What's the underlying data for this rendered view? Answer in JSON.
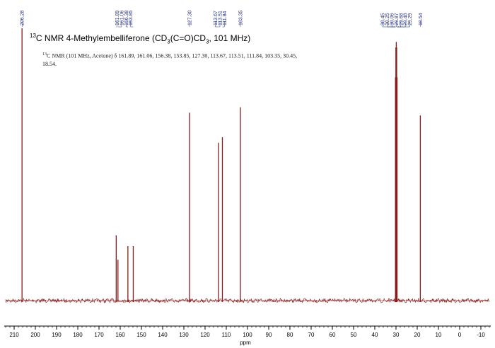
{
  "chart_data": {
    "type": "line",
    "title": {
      "prefix": "13",
      "text": "C NMR 4-Methylembelliferone (CD",
      "sub1": "3",
      "mid": "(C=O)CD",
      "sub2": "3",
      "suffix": ", 101 MHz)"
    },
    "description": {
      "prefix": "13",
      "text": "C NMR (101 MHz, Acetone) δ 161.89, 161.06, 156.38, 153.85, 127.30, 113.67, 113.51, 111.84, 103.35, 30.45, 18.54."
    },
    "xlabel": "ppm",
    "ylabel": "",
    "xlim": [
      214,
      -14
    ],
    "x_reversed": true,
    "x_ticks": [
      210,
      200,
      190,
      180,
      170,
      160,
      150,
      140,
      130,
      120,
      110,
      100,
      90,
      80,
      70,
      60,
      50,
      40,
      30,
      20,
      10,
      0,
      -10
    ],
    "peak_labels": [
      {
        "group": "a",
        "labels": [
          "206.28"
        ]
      },
      {
        "group": "b",
        "labels": [
          "161.89",
          "161.06",
          "156.38",
          "153.85"
        ]
      },
      {
        "group": "c",
        "labels": [
          "127.30"
        ]
      },
      {
        "group": "d",
        "labels": [
          "113.67",
          "113.51",
          "111.84"
        ]
      },
      {
        "group": "e",
        "labels": [
          "103.35"
        ]
      },
      {
        "group": "f",
        "labels": [
          "30.45",
          "30.25",
          "30.06",
          "29.87",
          "29.68",
          "29.48",
          "29.29"
        ]
      },
      {
        "group": "g",
        "labels": [
          "18.54"
        ]
      }
    ],
    "peaks": [
      {
        "ppm": 206.28,
        "intensity": 1.0
      },
      {
        "ppm": 161.89,
        "intensity": 0.24
      },
      {
        "ppm": 161.06,
        "intensity": 0.15
      },
      {
        "ppm": 156.38,
        "intensity": 0.2
      },
      {
        "ppm": 153.85,
        "intensity": 0.2
      },
      {
        "ppm": 127.3,
        "intensity": 0.69
      },
      {
        "ppm": 113.67,
        "intensity": 0.58
      },
      {
        "ppm": 111.84,
        "intensity": 0.6
      },
      {
        "ppm": 103.35,
        "intensity": 0.71
      },
      {
        "ppm": 30.25,
        "intensity": 0.82
      },
      {
        "ppm": 30.06,
        "intensity": 0.93
      },
      {
        "ppm": 29.87,
        "intensity": 0.95
      },
      {
        "ppm": 29.68,
        "intensity": 0.93
      },
      {
        "ppm": 29.48,
        "intensity": 0.82
      },
      {
        "ppm": 18.54,
        "intensity": 0.68
      }
    ],
    "colors": {
      "spectrum": "#8b1a1a",
      "annotation": "#1f2f8f",
      "axis": "#000000"
    },
    "grid": false,
    "legend": "none"
  }
}
